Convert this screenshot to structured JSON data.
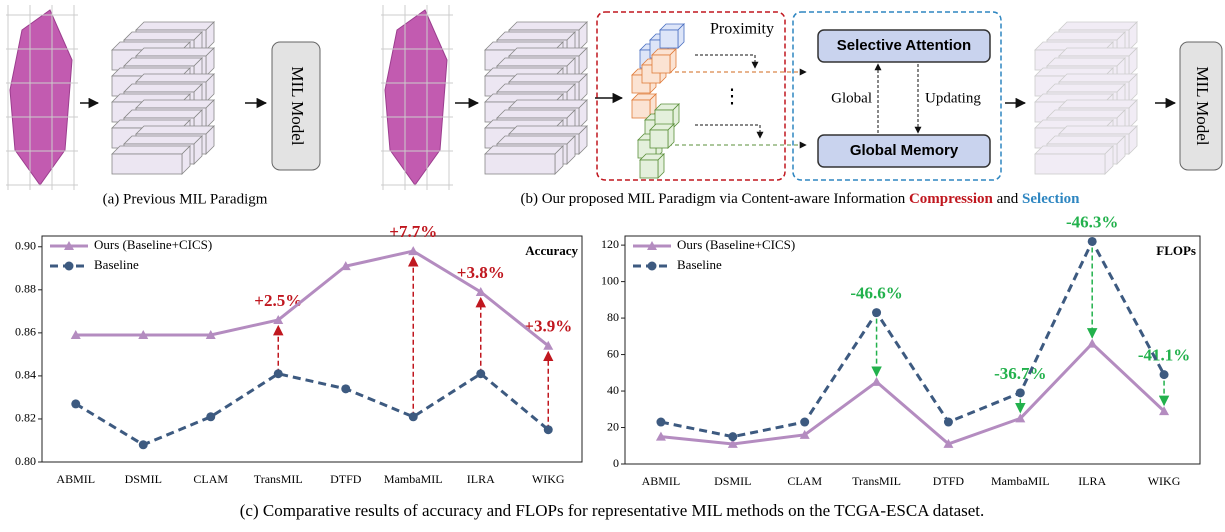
{
  "diagram": {
    "panel_a": {
      "model": "MIL Model",
      "caption": "(a) Previous MIL Paradigm"
    },
    "panel_b": {
      "proximity": "Proximity",
      "ellipsis": "⋮",
      "selective_attention": "Selective Attention",
      "global_memory": "Global Memory",
      "global": "Global",
      "updating": "Updating",
      "model": "MIL Model",
      "caption_prefix": "(b)  Our proposed MIL Paradigm via Content-aware Information ",
      "caption_compression": "Compression",
      "caption_and": " and ",
      "caption_selection": "Selection"
    }
  },
  "chart_data": [
    {
      "type": "line",
      "title": "Accuracy",
      "categories": [
        "ABMIL",
        "DSMIL",
        "CLAM",
        "TransMIL",
        "DTFD",
        "MambaMIL",
        "ILRA",
        "WIKG"
      ],
      "series": [
        {
          "name": "Ours (Baseline+CICS)",
          "color": "#b48cc0",
          "marker": "triangle",
          "dashed": false,
          "values": [
            0.859,
            0.859,
            0.859,
            0.866,
            0.891,
            0.898,
            0.879,
            0.854
          ]
        },
        {
          "name": "Baseline",
          "color": "#3d5a80",
          "marker": "circle",
          "dashed": true,
          "values": [
            0.827,
            0.808,
            0.821,
            0.841,
            0.834,
            0.821,
            0.841,
            0.815
          ]
        }
      ],
      "ylim": [
        0.8,
        0.905
      ],
      "yticks": [
        {
          "value": 0.8,
          "label": "0.80"
        },
        0.82,
        0.84,
        0.86,
        0.88,
        {
          "value": 0.9,
          "label": "0.90"
        }
      ],
      "annotation_color": "#c0171f",
      "annotations": [
        {
          "text": "+2.5%",
          "category": "TransMIL"
        },
        {
          "text": "+7.7%",
          "category": "MambaMIL"
        },
        {
          "text": "+3.8%",
          "category": "ILRA"
        },
        {
          "text": "+3.9%",
          "category": "WIKG"
        }
      ]
    },
    {
      "type": "line",
      "title": "FLOPs",
      "categories": [
        "ABMIL",
        "DSMIL",
        "CLAM",
        "TransMIL",
        "DTFD",
        "MambaMIL",
        "ILRA",
        "WIKG"
      ],
      "series": [
        {
          "name": "Ours (Baseline+CICS)",
          "color": "#b48cc0",
          "marker": "triangle",
          "dashed": false,
          "values": [
            15,
            11,
            16,
            45,
            11,
            25,
            66,
            29
          ]
        },
        {
          "name": "Baseline",
          "color": "#3d5a80",
          "marker": "circle",
          "dashed": true,
          "values": [
            23,
            15,
            23,
            83,
            23,
            39,
            122,
            49
          ]
        }
      ],
      "ylim": [
        0,
        125
      ],
      "yticks": [
        0,
        20,
        40,
        60,
        80,
        100,
        120
      ],
      "annotation_color": "#22b14c",
      "annotations": [
        {
          "text": "-46.6%",
          "category": "TransMIL"
        },
        {
          "text": "-36.7%",
          "category": "MambaMIL"
        },
        {
          "text": "-46.3%",
          "category": "ILRA"
        },
        {
          "text": "-41.1%",
          "category": "WIKG"
        }
      ]
    }
  ],
  "caption": "(c) Comparative results of accuracy and FLOPs for representative MIL methods on the TCGA-ESCA dataset."
}
